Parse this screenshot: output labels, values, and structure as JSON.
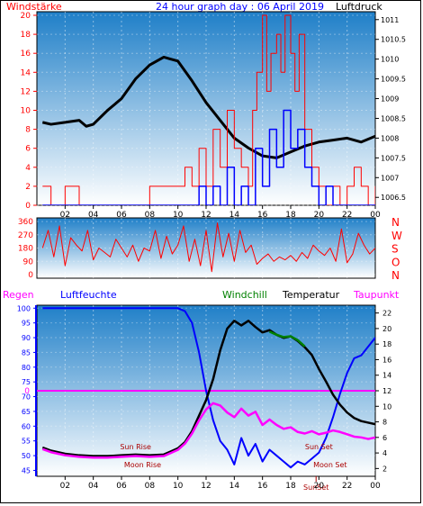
{
  "title": "24 hour graph day : 06 April 2019",
  "colors": {
    "red": "#ff0000",
    "blue": "#0000ff",
    "magenta": "#ff00ff",
    "green": "#008000",
    "black": "#000000",
    "darkred": "#aa0000",
    "sky_top": "#1f7fc8",
    "sky_bottom": "#ffffff"
  },
  "chart_data": [
    {
      "type": "line",
      "title": "24 hour graph day : 06 April 2019",
      "left_axis_label": "Windstärke",
      "right_axis_label": "Luftdruck",
      "x_ticks": [
        "02",
        "04",
        "06",
        "08",
        "10",
        "12",
        "14",
        "16",
        "18",
        "20",
        "22",
        "00"
      ],
      "y_left_ticks": [
        0,
        2,
        4,
        6,
        8,
        10,
        12,
        14,
        16,
        18,
        20
      ],
      "y_left_range": [
        0,
        20
      ],
      "y_right_ticks": [
        "1006.5",
        "1007",
        "1007.5",
        "1008",
        "1008.5",
        "1009",
        "1009.5",
        "1010",
        "1010.5",
        "1011"
      ],
      "y_right_range": [
        1006.3,
        1011.2
      ],
      "series": [
        {
          "color": "black",
          "x": [
            0.4,
            1,
            2,
            3,
            3.5,
            4,
            5,
            6,
            7,
            8,
            9,
            9.5,
            10,
            11,
            12,
            13,
            14,
            15,
            16,
            17,
            18,
            19,
            20,
            21,
            22,
            23,
            24
          ],
          "y": [
            1008.4,
            1008.35,
            1008.4,
            1008.45,
            1008.3,
            1008.35,
            1008.7,
            1009.0,
            1009.5,
            1009.85,
            1010.05,
            1010.0,
            1009.95,
            1009.45,
            1008.9,
            1008.45,
            1008.0,
            1007.75,
            1007.55,
            1007.5,
            1007.65,
            1007.8,
            1007.9,
            1007.95,
            1008.0,
            1007.9,
            1008.05
          ]
        },
        {
          "color": "red",
          "style": "gusts",
          "x": [
            0.4,
            1,
            2,
            3,
            4,
            5,
            6,
            7,
            8,
            9,
            10,
            10.5,
            11,
            11.5,
            12,
            12.5,
            13,
            13.5,
            14,
            14.5,
            15,
            15.3,
            15.6,
            16,
            16.3,
            16.6,
            17,
            17.3,
            17.6,
            18,
            18.3,
            18.6,
            19,
            19.5,
            20,
            20.5,
            21,
            21.5,
            22,
            22.5,
            23,
            23.5,
            24
          ],
          "y": [
            2,
            0,
            2,
            0,
            0,
            0,
            0,
            0,
            2,
            2,
            2,
            4,
            2,
            6,
            2,
            8,
            4,
            10,
            6,
            4,
            2,
            10,
            14,
            20,
            12,
            16,
            18,
            14,
            20,
            16,
            12,
            18,
            8,
            4,
            2,
            0,
            2,
            0,
            2,
            4,
            2,
            0,
            2
          ]
        },
        {
          "color": "blue",
          "style": "wind",
          "x": [
            0.4,
            2,
            4,
            6,
            8,
            10,
            11,
            11.5,
            12,
            12.5,
            13,
            13.5,
            14,
            14.5,
            15,
            15.5,
            16,
            16.5,
            17,
            17.5,
            18,
            18.5,
            19,
            19.5,
            20,
            20.5,
            21,
            22,
            23,
            24
          ],
          "y": [
            0,
            0,
            0,
            0,
            0,
            0,
            0,
            2,
            0,
            2,
            0,
            4,
            0,
            2,
            0,
            6,
            2,
            8,
            4,
            10,
            6,
            8,
            4,
            2,
            0,
            2,
            0,
            0,
            0,
            0
          ]
        }
      ]
    },
    {
      "type": "line",
      "title": "",
      "right_axis_label": "N W S O N",
      "right_letters": [
        "N",
        "W",
        "S",
        "O",
        "N"
      ],
      "y_ticks": [
        0,
        90,
        180,
        270,
        360
      ],
      "y_range": [
        0,
        360
      ],
      "series": [
        {
          "color": "red",
          "x": [
            0.4,
            0.8,
            1.2,
            1.6,
            2,
            2.4,
            2.8,
            3.2,
            3.6,
            4,
            4.4,
            4.8,
            5.2,
            5.6,
            6,
            6.4,
            6.8,
            7.2,
            7.6,
            8,
            8.4,
            8.8,
            9.2,
            9.6,
            10,
            10.4,
            10.8,
            11.2,
            11.6,
            12,
            12.4,
            12.8,
            13.2,
            13.6,
            14,
            14.4,
            14.8,
            15.2,
            15.6,
            16,
            16.4,
            16.8,
            17.2,
            17.6,
            18,
            18.4,
            18.8,
            19.2,
            19.6,
            20,
            20.4,
            20.8,
            21.2,
            21.6,
            22,
            22.4,
            22.8,
            23.2,
            23.6,
            24
          ],
          "y": [
            180,
            300,
            120,
            330,
            60,
            250,
            200,
            160,
            300,
            100,
            180,
            150,
            120,
            240,
            180,
            120,
            200,
            90,
            180,
            160,
            300,
            110,
            260,
            140,
            200,
            330,
            90,
            240,
            60,
            300,
            20,
            350,
            120,
            280,
            90,
            300,
            150,
            200,
            70,
            110,
            140,
            90,
            120,
            100,
            130,
            90,
            150,
            110,
            200,
            160,
            130,
            180,
            90,
            310,
            80,
            140,
            280,
            200,
            140,
            180
          ]
        }
      ]
    },
    {
      "type": "line",
      "title": "",
      "left_axis_labels": [
        "Regen",
        "Luftfeuchte"
      ],
      "right_axis_labels": [
        "Windchill",
        "Temperatur",
        "Taupunkt"
      ],
      "y_left_ticks": [
        45,
        50,
        55,
        60,
        65,
        70,
        75,
        80,
        85,
        90,
        95,
        100
      ],
      "y_left_range": [
        43,
        101
      ],
      "y_right_ticks": [
        2,
        4,
        6,
        8,
        10,
        12,
        14,
        16,
        18,
        20,
        22
      ],
      "y_right_range": [
        1,
        23
      ],
      "rain_level_label": "0",
      "rain_level_value": 0,
      "annotations": [
        {
          "text": "Sun Rise",
          "x": 7.0
        },
        {
          "text": "Moon Rise",
          "x": 7.5
        },
        {
          "text": "Sun Set",
          "x": 20.0
        },
        {
          "text": "Moon Set",
          "x": 20.8
        },
        {
          "text": "SunSet",
          "x": 19.8
        }
      ],
      "series": [
        {
          "color": "blue",
          "axis": "left",
          "x": [
            0.4,
            2,
            4,
            6,
            8,
            10,
            10.5,
            11,
            11.5,
            12,
            12.5,
            13,
            13.5,
            14,
            14.5,
            15,
            15.5,
            16,
            16.5,
            17,
            17.5,
            18,
            18.5,
            19,
            19.5,
            20,
            20.5,
            21,
            21.5,
            22,
            22.5,
            23,
            23.5,
            24
          ],
          "y": [
            100,
            100,
            100,
            100,
            100,
            100,
            99,
            95,
            85,
            72,
            62,
            55,
            52,
            47,
            56,
            50,
            54,
            48,
            52,
            50,
            48,
            46,
            48,
            47,
            49,
            51,
            56,
            63,
            71,
            78,
            83,
            84,
            87,
            90
          ]
        },
        {
          "color": "black",
          "axis": "right",
          "x": [
            0.4,
            1,
            2,
            3,
            4,
            5,
            6,
            7,
            8,
            9,
            9.5,
            10,
            10.5,
            11,
            11.5,
            12,
            12.5,
            13,
            13.5,
            14,
            14.5,
            15,
            15.5,
            16,
            16.5,
            17,
            17.5,
            18,
            18.5,
            19,
            19.5,
            20,
            20.5,
            21,
            21.5,
            22,
            22.5,
            23,
            23.5,
            24
          ],
          "y": [
            4.7,
            4.3,
            3.9,
            3.7,
            3.6,
            3.6,
            3.7,
            3.8,
            3.7,
            3.8,
            4.2,
            4.6,
            5.4,
            6.8,
            8.8,
            10.8,
            13.5,
            17.2,
            20.0,
            21.0,
            20.4,
            21.0,
            20.2,
            19.5,
            19.8,
            19.2,
            18.8,
            19.0,
            18.4,
            17.6,
            16.6,
            14.8,
            13.2,
            11.5,
            10.2,
            9.2,
            8.5,
            8.1,
            7.9,
            7.7
          ]
        },
        {
          "color": "green",
          "axis": "right",
          "x": [
            16.5,
            17,
            17.5,
            18,
            18.5,
            19
          ],
          "y": [
            19.6,
            19.2,
            18.9,
            19.0,
            18.5,
            17.7
          ]
        },
        {
          "color": "magenta",
          "axis": "right",
          "x": [
            0.4,
            1,
            2,
            3,
            4,
            5,
            6,
            7,
            8,
            9,
            9.5,
            10,
            10.5,
            11,
            11.5,
            12,
            12.5,
            13,
            13.5,
            14,
            14.5,
            15,
            15.5,
            16,
            16.5,
            17,
            17.5,
            18,
            18.5,
            19,
            19.5,
            20,
            20.5,
            21,
            21.5,
            22,
            22.5,
            23,
            23.5,
            24
          ],
          "y": [
            4.5,
            4.1,
            3.7,
            3.5,
            3.4,
            3.4,
            3.5,
            3.6,
            3.5,
            3.6,
            4.0,
            4.4,
            5.2,
            6.5,
            8.2,
            9.6,
            10.4,
            10.1,
            9.2,
            8.6,
            9.7,
            8.8,
            9.3,
            7.6,
            8.3,
            7.6,
            7.1,
            7.3,
            6.7,
            6.5,
            6.8,
            6.4,
            6.6,
            6.9,
            6.7,
            6.4,
            6.1,
            6.0,
            5.8,
            6.0
          ]
        }
      ]
    }
  ]
}
